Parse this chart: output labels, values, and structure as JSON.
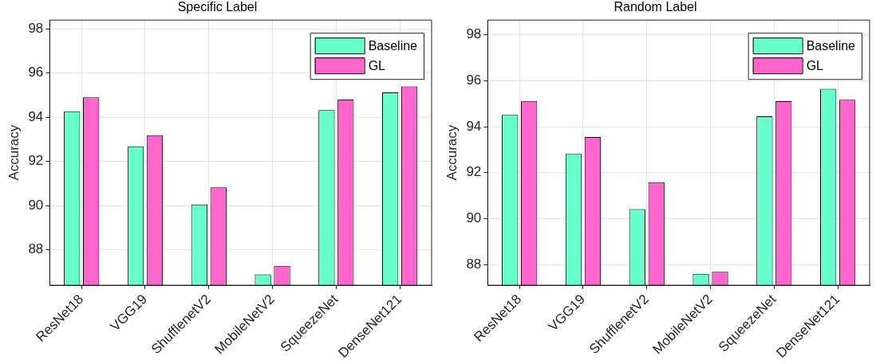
{
  "chart_data": [
    {
      "type": "bar",
      "title": "Specific Label",
      "ylabel": "Accuracy",
      "categories": [
        "ResNet18",
        "VGG19",
        "ShufflenetV2",
        "MobileNetV2",
        "SqueezeNet",
        "DenseNet121"
      ],
      "series": [
        {
          "name": "Baseline",
          "color": "#66ffcc",
          "values": [
            94.27,
            92.68,
            90.05,
            86.89,
            94.32,
            95.13
          ]
        },
        {
          "name": "GL",
          "color": "#ff66cc",
          "values": [
            94.9,
            93.19,
            90.83,
            87.28,
            94.8,
            95.4
          ]
        }
      ],
      "ylim": [
        86.4,
        98.4
      ],
      "yticks": [
        88,
        90,
        92,
        94,
        96,
        98
      ],
      "grid": true,
      "legend": "top right"
    },
    {
      "type": "bar",
      "title": "Random Label",
      "ylabel": "Accuracy",
      "categories": [
        "ResNet18",
        "VGG19",
        "ShufflenetV2",
        "MobileNetV2",
        "SqueezeNet",
        "DenseNet121"
      ],
      "series": [
        {
          "name": "Baseline",
          "color": "#66ffcc",
          "values": [
            94.51,
            92.81,
            90.41,
            87.6,
            94.45,
            95.65
          ]
        },
        {
          "name": "GL",
          "color": "#ff66cc",
          "values": [
            95.12,
            93.55,
            91.58,
            87.68,
            95.11,
            95.17
          ]
        }
      ],
      "ylim": [
        87.1,
        98.64
      ],
      "yticks": [
        88,
        90,
        92,
        94,
        96,
        98
      ],
      "grid": true,
      "legend": "top right"
    }
  ]
}
